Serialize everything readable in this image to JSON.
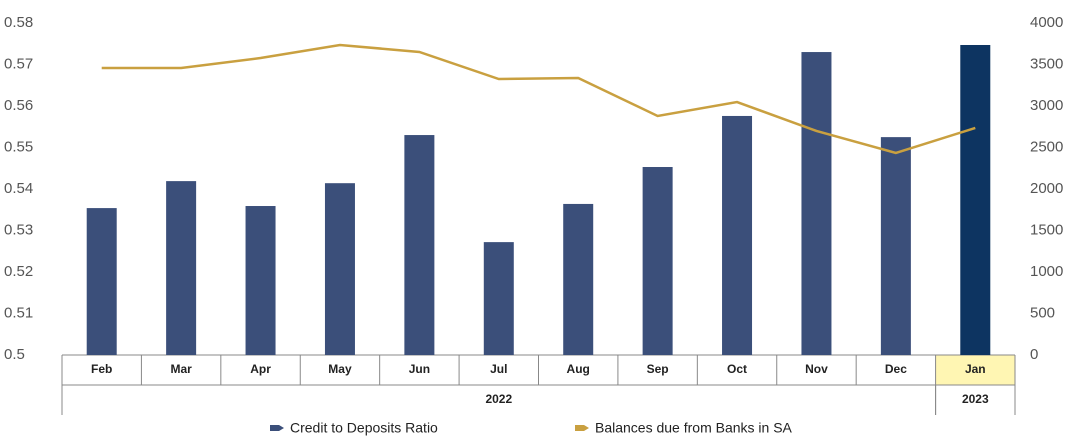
{
  "chart_data": {
    "type": "bar",
    "categories": [
      "Feb",
      "Mar",
      "Apr",
      "May",
      "Jun",
      "Jul",
      "Aug",
      "Sep",
      "Oct",
      "Nov",
      "Dec",
      "Jan"
    ],
    "groups": [
      {
        "label": "2022",
        "span": 11
      },
      {
        "label": "2023",
        "span": 1
      }
    ],
    "label_backgrounds": [
      "#ffffff",
      "#ffffff",
      "#ffffff",
      "#ffffff",
      "#ffffff",
      "#ffffff",
      "#ffffff",
      "#ffffff",
      "#ffffff",
      "#ffffff",
      "#ffffff",
      "#fff6b3"
    ],
    "series": [
      {
        "name": "Credit to Deposits Ratio",
        "type": "bar",
        "color": "#3b4f7a",
        "colors": [
          "#3b4f7a",
          "#3b4f7a",
          "#3b4f7a",
          "#3b4f7a",
          "#3b4f7a",
          "#3b4f7a",
          "#3b4f7a",
          "#3b4f7a",
          "#3b4f7a",
          "#3b4f7a",
          "#3b4f7a",
          "#0d3461"
        ],
        "values": [
          0.5354,
          0.5419,
          0.5359,
          0.5414,
          0.553,
          0.5272,
          0.5364,
          0.5453,
          0.5576,
          0.573,
          0.5525,
          0.5747
        ]
      },
      {
        "name": "Balances due from Banks in SA",
        "type": "line",
        "axis": "y2",
        "color": "#c9a040",
        "values": [
          3458,
          3458,
          3578,
          3735,
          3651,
          3325,
          3337,
          2880,
          3048,
          2699,
          2434,
          2735
        ]
      }
    ],
    "ylim": [
      0.5,
      0.58
    ],
    "yticks": [
      0.5,
      0.51,
      0.52,
      0.53,
      0.54,
      0.55,
      0.56,
      0.57,
      0.58
    ],
    "y2lim": [
      0,
      4000
    ],
    "y2ticks": [
      0,
      500,
      1000,
      1500,
      2000,
      2500,
      3000,
      3500,
      4000
    ],
    "grid": false
  }
}
